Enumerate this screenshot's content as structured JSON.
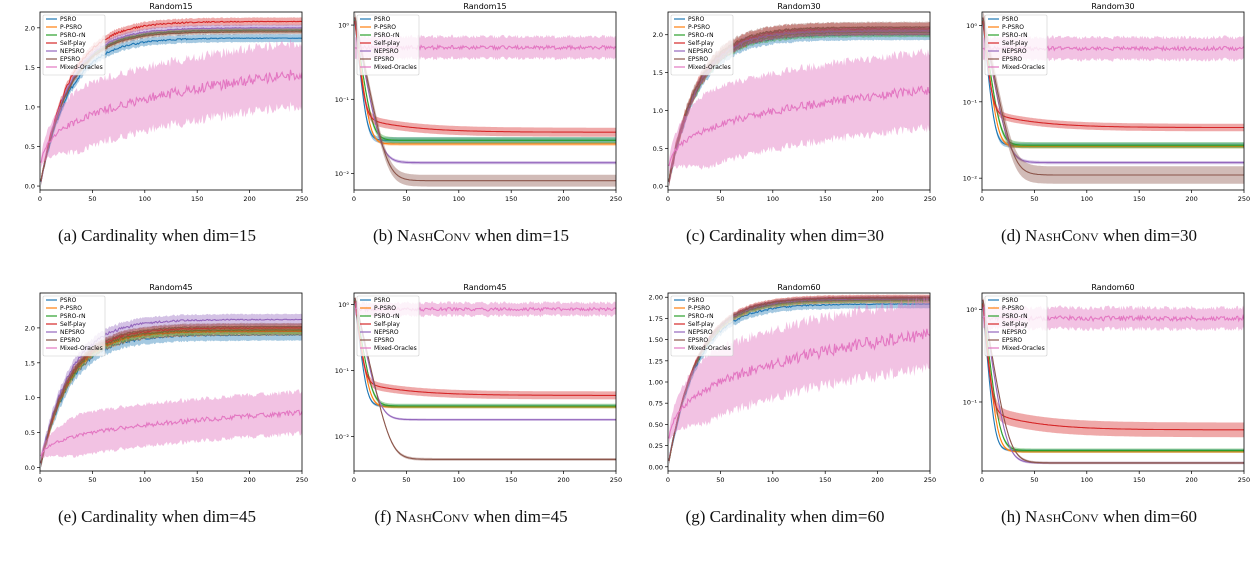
{
  "series_names": [
    "PSRO",
    "P-PSRO",
    "PSRO-rN",
    "Self-play",
    "NEPSRO",
    "EPSRO",
    "Mixed-Oracles"
  ],
  "series_colors": [
    "#1f77b4",
    "#ff7f0e",
    "#2ca02c",
    "#d62728",
    "#9467bd",
    "#8c564b",
    "#e377c2"
  ],
  "chart_data": [
    {
      "type": "line",
      "title": "Random15",
      "yscale": "linear",
      "xlim": [
        0,
        250
      ],
      "ylim": [
        -0.05,
        2.2
      ],
      "xticks": [
        0,
        50,
        100,
        150,
        200,
        250
      ],
      "yticks": [
        0.0,
        0.5,
        1.0,
        1.5,
        2.0
      ],
      "ytick_labels": [
        "0.0",
        "0.5",
        "1.0",
        "1.5",
        "2.0"
      ],
      "caption_prefix": "(a) Cardinality when dim=15",
      "caption_nc": "",
      "caption_suffix": "",
      "series": [
        {
          "name": "PSRO",
          "final": 1.87,
          "band": 0.05
        },
        {
          "name": "P-PSRO",
          "final": 1.97,
          "band": 0.03
        },
        {
          "name": "PSRO-rN",
          "final": 1.97,
          "band": 0.03
        },
        {
          "name": "Self-play",
          "final": 2.08,
          "band": 0.05
        },
        {
          "name": "NEPSRO",
          "final": 2.0,
          "band": 0.04
        },
        {
          "name": "EPSRO",
          "final": 1.95,
          "band": 0.03
        },
        {
          "name": "Mixed-Oracles",
          "final": 1.45,
          "band": 0.4
        }
      ]
    },
    {
      "type": "line",
      "title": "Random15",
      "yscale": "log",
      "xlim": [
        0,
        250
      ],
      "ylim": [
        0.006,
        1.5
      ],
      "xticks": [
        0,
        50,
        100,
        150,
        200,
        250
      ],
      "yticks": [
        0.01,
        0.1,
        1
      ],
      "ytick_labels": [
        "10⁻²",
        "10⁻¹",
        "10⁰"
      ],
      "caption_prefix": "(b) ",
      "caption_nc": "NashConv",
      "caption_suffix": " when dim=15",
      "series": [
        {
          "name": "PSRO",
          "final": 0.028,
          "band": 0.1
        },
        {
          "name": "P-PSRO",
          "final": 0.025,
          "band": 0.05
        },
        {
          "name": "PSRO-rN",
          "final": 0.028,
          "band": 0.1
        },
        {
          "name": "Self-play",
          "final": 0.036,
          "band": 0.15
        },
        {
          "name": "NEPSRO",
          "final": 0.014,
          "band": 0.05
        },
        {
          "name": "EPSRO",
          "final": 0.008,
          "band": 0.2
        },
        {
          "name": "Mixed-Oracles",
          "final": 0.5,
          "band": 0.4
        }
      ]
    },
    {
      "type": "line",
      "title": "Random30",
      "yscale": "linear",
      "xlim": [
        0,
        250
      ],
      "ylim": [
        -0.05,
        2.3
      ],
      "xticks": [
        0,
        50,
        100,
        150,
        200,
        250
      ],
      "yticks": [
        0.0,
        0.5,
        1.0,
        1.5,
        2.0
      ],
      "ytick_labels": [
        "0.0",
        "0.5",
        "1.0",
        "1.5",
        "2.0"
      ],
      "caption_prefix": "(c) Cardinality when dim=30",
      "caption_nc": "",
      "caption_suffix": "",
      "series": [
        {
          "name": "PSRO",
          "final": 2.0,
          "band": 0.07
        },
        {
          "name": "P-PSRO",
          "final": 2.05,
          "band": 0.06
        },
        {
          "name": "PSRO-rN",
          "final": 2.03,
          "band": 0.06
        },
        {
          "name": "Self-play",
          "final": 2.08,
          "band": 0.08
        },
        {
          "name": "NEPSRO",
          "final": 2.05,
          "band": 0.06
        },
        {
          "name": "EPSRO",
          "final": 2.1,
          "band": 0.07
        },
        {
          "name": "Mixed-Oracles",
          "final": 1.3,
          "band": 0.5
        }
      ]
    },
    {
      "type": "line",
      "title": "Random30",
      "yscale": "log",
      "xlim": [
        0,
        250
      ],
      "ylim": [
        0.007,
        1.5
      ],
      "xticks": [
        0,
        50,
        100,
        150,
        200,
        250
      ],
      "yticks": [
        0.01,
        0.1,
        1
      ],
      "ytick_labels": [
        "10⁻²",
        "10⁻¹",
        "10⁰"
      ],
      "caption_prefix": "(d) ",
      "caption_nc": "NashConv",
      "caption_suffix": " when dim=30",
      "series": [
        {
          "name": "PSRO",
          "final": 0.027,
          "band": 0.08
        },
        {
          "name": "P-PSRO",
          "final": 0.026,
          "band": 0.06
        },
        {
          "name": "PSRO-rN",
          "final": 0.027,
          "band": 0.1
        },
        {
          "name": "Self-play",
          "final": 0.046,
          "band": 0.12
        },
        {
          "name": "NEPSRO",
          "final": 0.016,
          "band": 0.05
        },
        {
          "name": "EPSRO",
          "final": 0.011,
          "band": 0.3
        },
        {
          "name": "Mixed-Oracles",
          "final": 0.5,
          "band": 0.4
        }
      ]
    },
    {
      "type": "line",
      "title": "Random45",
      "yscale": "linear",
      "xlim": [
        0,
        250
      ],
      "ylim": [
        -0.05,
        2.5
      ],
      "xticks": [
        0,
        50,
        100,
        150,
        200,
        250
      ],
      "yticks": [
        0.0,
        0.5,
        1.0,
        1.5,
        2.0
      ],
      "ytick_labels": [
        "0.0",
        "0.5",
        "1.0",
        "1.5",
        "2.0"
      ],
      "caption_prefix": "(e) Cardinality when dim=45",
      "caption_nc": "",
      "caption_suffix": "",
      "series": [
        {
          "name": "PSRO",
          "final": 1.9,
          "band": 0.08
        },
        {
          "name": "P-PSRO",
          "final": 1.95,
          "band": 0.06
        },
        {
          "name": "PSRO-rN",
          "final": 1.97,
          "band": 0.06
        },
        {
          "name": "Self-play",
          "final": 2.0,
          "band": 0.06
        },
        {
          "name": "NEPSRO",
          "final": 2.12,
          "band": 0.08
        },
        {
          "name": "EPSRO",
          "final": 2.02,
          "band": 0.05
        },
        {
          "name": "Mixed-Oracles",
          "final": 0.8,
          "band": 0.3
        }
      ]
    },
    {
      "type": "line",
      "title": "Random45",
      "yscale": "log",
      "xlim": [
        0,
        250
      ],
      "ylim": [
        0.003,
        1.5
      ],
      "xticks": [
        0,
        50,
        100,
        150,
        200,
        250
      ],
      "yticks": [
        0.01,
        0.1,
        1
      ],
      "ytick_labels": [
        "10⁻²",
        "10⁻¹",
        "10⁰"
      ],
      "caption_prefix": "(f) ",
      "caption_nc": "NashConv",
      "caption_suffix": " when dim=45",
      "series": [
        {
          "name": "PSRO",
          "final": 0.029,
          "band": 0.05
        },
        {
          "name": "P-PSRO",
          "final": 0.028,
          "band": 0.05
        },
        {
          "name": "PSRO-rN",
          "final": 0.029,
          "band": 0.08
        },
        {
          "name": "Self-play",
          "final": 0.042,
          "band": 0.15
        },
        {
          "name": "NEPSRO",
          "final": 0.018,
          "band": 0.04
        },
        {
          "name": "EPSRO",
          "final": 0.0045,
          "band": 0.05
        },
        {
          "name": "Mixed-Oracles",
          "final": 0.85,
          "band": 0.25
        }
      ]
    },
    {
      "type": "line",
      "title": "Random60",
      "yscale": "linear",
      "xlim": [
        0,
        250
      ],
      "ylim": [
        -0.05,
        2.05
      ],
      "xticks": [
        0,
        50,
        100,
        150,
        200,
        250
      ],
      "yticks": [
        0.0,
        0.25,
        0.5,
        0.75,
        1.0,
        1.25,
        1.5,
        1.75,
        2.0
      ],
      "ytick_labels": [
        "0.00",
        "0.25",
        "0.50",
        "0.75",
        "1.00",
        "1.25",
        "1.50",
        "1.75",
        "2.00"
      ],
      "caption_prefix": "(g) Cardinality when dim=60",
      "caption_nc": "",
      "caption_suffix": "",
      "series": [
        {
          "name": "PSRO",
          "final": 1.92,
          "band": 0.05
        },
        {
          "name": "P-PSRO",
          "final": 1.96,
          "band": 0.03
        },
        {
          "name": "PSRO-rN",
          "final": 1.97,
          "band": 0.03
        },
        {
          "name": "Self-play",
          "final": 2.0,
          "band": 0.03
        },
        {
          "name": "NEPSRO",
          "final": 1.98,
          "band": 0.03
        },
        {
          "name": "EPSRO",
          "final": 1.99,
          "band": 0.03
        },
        {
          "name": "Mixed-Oracles",
          "final": 1.6,
          "band": 0.4
        }
      ]
    },
    {
      "type": "line",
      "title": "Random60",
      "yscale": "log",
      "xlim": [
        0,
        250
      ],
      "ylim": [
        0.018,
        1.5
      ],
      "xticks": [
        0,
        50,
        100,
        150,
        200,
        250
      ],
      "yticks": [
        0.1,
        1
      ],
      "ytick_labels": [
        "10⁻¹",
        "10⁰"
      ],
      "caption_prefix": "(h) ",
      "caption_nc": "NashConv",
      "caption_suffix": " when dim=60",
      "series": [
        {
          "name": "PSRO",
          "final": 0.03,
          "band": 0.03
        },
        {
          "name": "P-PSRO",
          "final": 0.029,
          "band": 0.03
        },
        {
          "name": "PSRO-rN",
          "final": 0.03,
          "band": 0.05
        },
        {
          "name": "Self-play",
          "final": 0.05,
          "band": 0.2
        },
        {
          "name": "NEPSRO",
          "final": 0.022,
          "band": 0.03
        },
        {
          "name": "EPSRO",
          "final": 0.022,
          "band": 0.03
        },
        {
          "name": "Mixed-Oracles",
          "final": 0.8,
          "band": 0.3
        }
      ]
    }
  ]
}
